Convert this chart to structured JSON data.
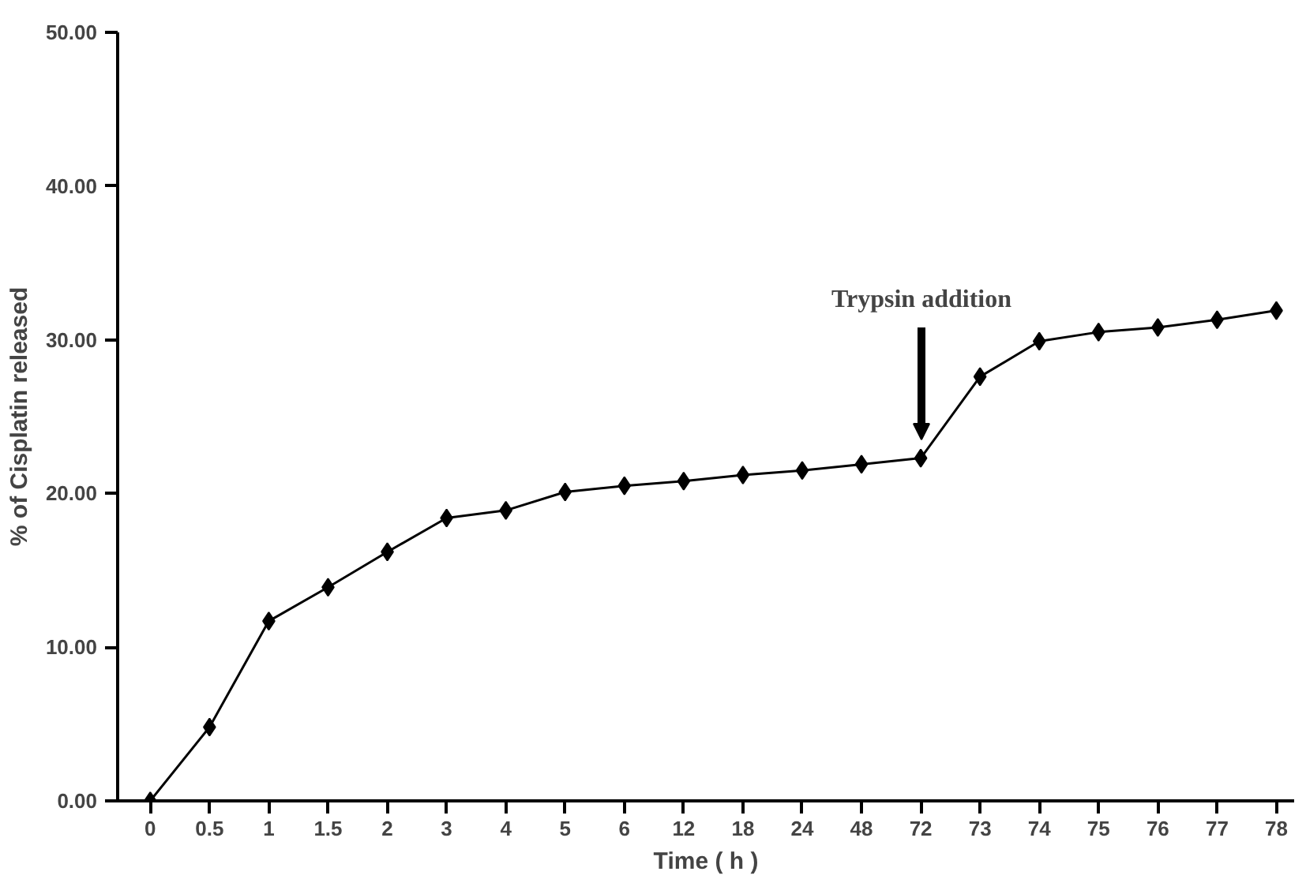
{
  "chart_data": {
    "type": "line",
    "xlabel": "Time ( h )",
    "ylabel": "% of Cisplatin released",
    "categories": [
      "0",
      "0.5",
      "1",
      "1.5",
      "2",
      "3",
      "4",
      "5",
      "6",
      "12",
      "18",
      "24",
      "48",
      "72",
      "73",
      "74",
      "75",
      "76",
      "77",
      "78"
    ],
    "series": [
      {
        "color": "#000000",
        "values": [
          0,
          4.8,
          11.7,
          13.9,
          16.2,
          18.4,
          18.9,
          20.1,
          20.5,
          20.8,
          21.2,
          21.5,
          21.9,
          22.3,
          27.6,
          29.9,
          30.5,
          30.8,
          31.3,
          31.9
        ]
      }
    ],
    "ylim": [
      0,
      50
    ],
    "yticks": [
      {
        "value": 0,
        "label": "0.00"
      },
      {
        "value": 10,
        "label": "10.00"
      },
      {
        "value": 20,
        "label": "20.00"
      },
      {
        "value": 30,
        "label": "30.00"
      },
      {
        "value": 40,
        "label": "40.00"
      },
      {
        "value": 50,
        "label": "50.00"
      }
    ],
    "annotations": [
      "Trypsin addition"
    ],
    "grid": false,
    "marker": "diamond",
    "line_style": "solid"
  }
}
